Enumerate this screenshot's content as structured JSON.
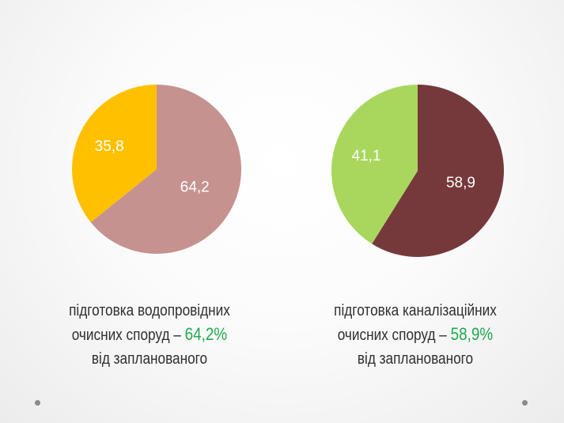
{
  "chart_data": [
    {
      "type": "pie",
      "labels": [
        "64,2",
        "35,8"
      ],
      "values": [
        64.2,
        35.8
      ],
      "colors": [
        "#c6928f",
        "#ffc000"
      ],
      "start_slice": "64,2 clockwise from 12 o'clock"
    },
    {
      "type": "pie",
      "labels": [
        "58,9",
        "41,1"
      ],
      "values": [
        58.9,
        41.1
      ],
      "colors": [
        "#76393b",
        "#a9d75e"
      ],
      "start_slice": "58,9 clockwise from 12 o'clock"
    }
  ],
  "captions": [
    {
      "line1": "підготовка водопровідних",
      "line2_prefix": "очисних споруд –",
      "highlight": "64,2%",
      "line3": "від запланованого"
    },
    {
      "line1": "підготовка каналізаційних",
      "line2_prefix": "очисних споруд –",
      "highlight": "58,9%",
      "line3": "від запланованого"
    }
  ],
  "colors": {
    "highlight": "#1faa4e",
    "caption_text": "#2f2f2f"
  }
}
